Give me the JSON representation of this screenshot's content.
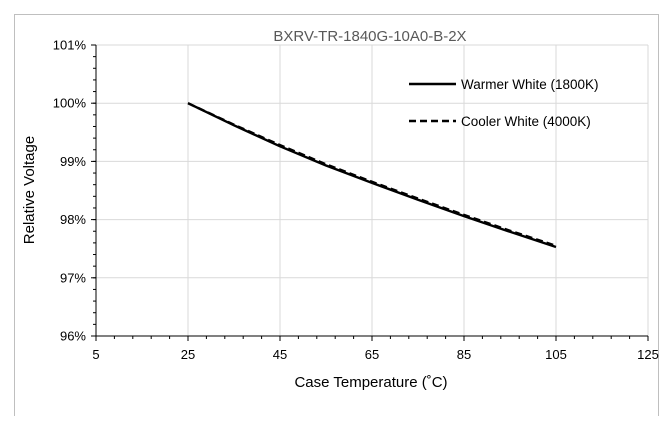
{
  "chart_data": {
    "type": "line",
    "title": "BXRV-TR-1840G-10A0-B-2X",
    "xlabel": "Case Temperature (˚C)",
    "ylabel": "Relative Voltage",
    "xlim": [
      5,
      125
    ],
    "ylim": [
      96,
      101
    ],
    "x_ticks": [
      5,
      25,
      45,
      65,
      85,
      105,
      125
    ],
    "y_ticks": [
      96,
      97,
      98,
      99,
      100,
      101
    ],
    "x_tick_labels": [
      "5",
      "25",
      "45",
      "65",
      "85",
      "105",
      "125"
    ],
    "y_tick_labels": [
      "96%",
      "97%",
      "98%",
      "99%",
      "100%",
      "101%"
    ],
    "grid": true,
    "legend_position": "top-right",
    "series": [
      {
        "name": "Warmer White (1800K)",
        "style": "solid",
        "x": [
          25,
          35,
          45,
          55,
          65,
          75,
          85,
          95,
          105
        ],
        "y": [
          100.0,
          99.62,
          99.26,
          98.93,
          98.63,
          98.34,
          98.06,
          97.79,
          97.53
        ]
      },
      {
        "name": "Cooler White (4000K)",
        "style": "dashed",
        "x": [
          25,
          35,
          45,
          55,
          65,
          75,
          85,
          95,
          105
        ],
        "y": [
          100.0,
          99.63,
          99.28,
          98.95,
          98.65,
          98.36,
          98.08,
          97.81,
          97.55
        ]
      }
    ]
  }
}
